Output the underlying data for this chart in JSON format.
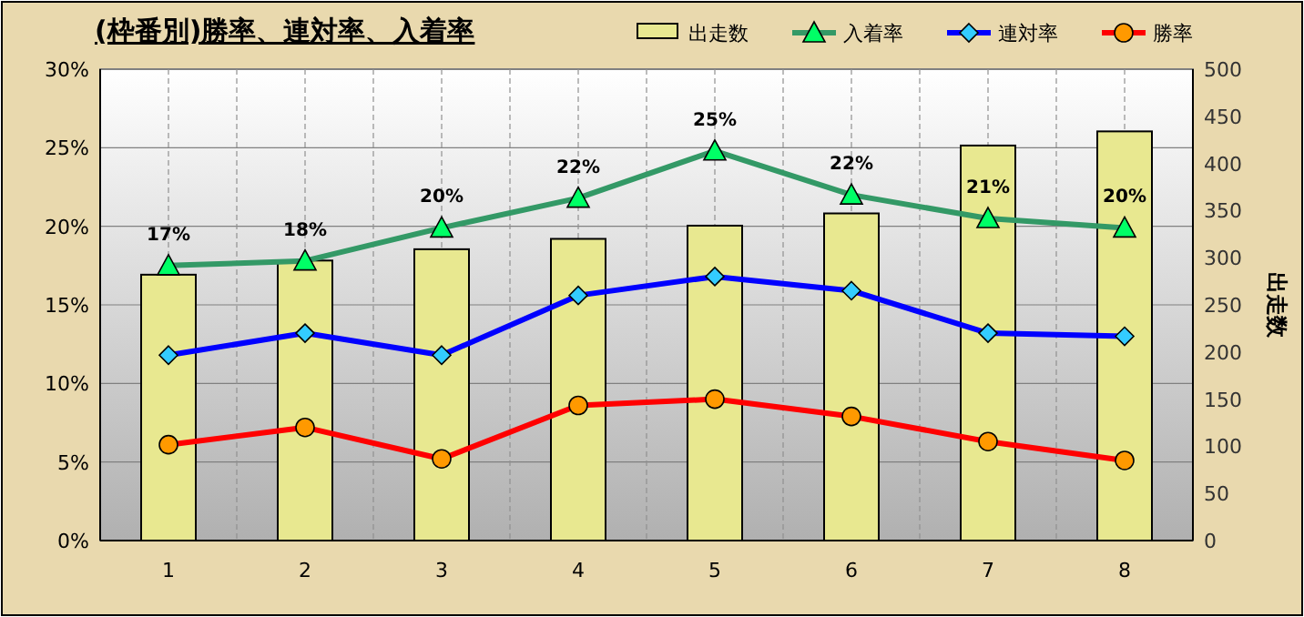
{
  "chart_data": {
    "type": "bar",
    "title": "(枠番別)勝率、連対率、入着率",
    "y2label": "出走数",
    "categories": [
      "1",
      "2",
      "3",
      "4",
      "5",
      "6",
      "7",
      "8"
    ],
    "series": [
      {
        "name": "出走数",
        "axis": "y2",
        "color": "#e8e890",
        "values": [
          282,
          297,
          309,
          320,
          334,
          347,
          419,
          434
        ]
      },
      {
        "name": "入着率",
        "type": "line",
        "color": "#339966",
        "marker": "triangle",
        "values": [
          17.5,
          17.8,
          19.9,
          21.8,
          24.8,
          22.0,
          20.5,
          19.9
        ],
        "value_labels": [
          "17%",
          "18%",
          "20%",
          "22%",
          "25%",
          "22%",
          "21%",
          "20%"
        ]
      },
      {
        "name": "連対率",
        "type": "line",
        "color": "#0000ff",
        "marker": "diamond",
        "values": [
          11.8,
          13.2,
          11.8,
          15.6,
          16.8,
          15.9,
          13.2,
          13.0
        ]
      },
      {
        "name": "勝率",
        "type": "line",
        "color": "#ff0000",
        "marker": "circle",
        "values": [
          6.1,
          7.2,
          5.2,
          8.6,
          9.0,
          7.9,
          6.3,
          5.1
        ]
      }
    ],
    "ylim": [
      0,
      30
    ],
    "yticks": [
      {
        "value": 0,
        "label": "0%"
      },
      {
        "value": 5,
        "label": "5%"
      },
      {
        "value": 10,
        "label": "10%"
      },
      {
        "value": 15,
        "label": "15%"
      },
      {
        "value": 20,
        "label": "20%"
      },
      {
        "value": 25,
        "label": "25%"
      },
      {
        "value": 30,
        "label": "30%"
      }
    ],
    "y2lim": [
      0,
      500
    ],
    "y2ticks": [
      0,
      50,
      100,
      150,
      200,
      250,
      300,
      350,
      400,
      450,
      500
    ],
    "grid": true,
    "legend": "top right"
  }
}
